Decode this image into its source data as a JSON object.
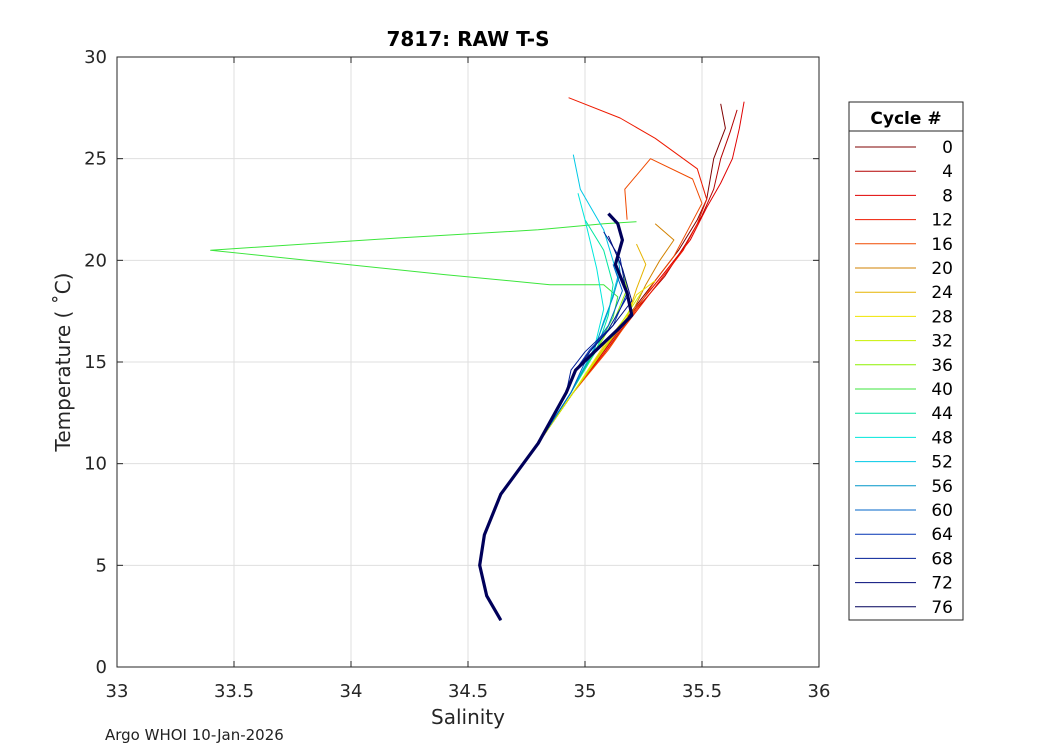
{
  "footer": "Argo WHOI 10-Jan-2026",
  "chart_data": {
    "type": "line",
    "title": "7817: RAW T-S",
    "xlabel": "Salinity",
    "ylabel": "Temperature ( ˚C)",
    "xlim": [
      33,
      36
    ],
    "ylim": [
      0,
      30
    ],
    "xticks": [
      "33",
      "33.5",
      "34",
      "34.5",
      "35",
      "35.5",
      "36"
    ],
    "yticks": [
      "0",
      "5",
      "10",
      "15",
      "20",
      "25",
      "30"
    ],
    "grid": true,
    "legend": {
      "title": "Cycle #",
      "placement": "right-outside",
      "entries": [
        {
          "label": "0",
          "color": "#7f0000"
        },
        {
          "label": "4",
          "color": "#b30000"
        },
        {
          "label": "8",
          "color": "#e00000"
        },
        {
          "label": "12",
          "color": "#ee1a00"
        },
        {
          "label": "16",
          "color": "#f04a00"
        },
        {
          "label": "20",
          "color": "#d28200"
        },
        {
          "label": "24",
          "color": "#e6b400"
        },
        {
          "label": "28",
          "color": "#f0e400"
        },
        {
          "label": "32",
          "color": "#c8f000"
        },
        {
          "label": "36",
          "color": "#8ef000"
        },
        {
          "label": "40",
          "color": "#3ce63c"
        },
        {
          "label": "44",
          "color": "#00e6a0"
        },
        {
          "label": "48",
          "color": "#00e6dc"
        },
        {
          "label": "52",
          "color": "#00c8e6"
        },
        {
          "label": "56",
          "color": "#0096c8"
        },
        {
          "label": "60",
          "color": "#0064c8"
        },
        {
          "label": "64",
          "color": "#0032b4"
        },
        {
          "label": "68",
          "color": "#001e96"
        },
        {
          "label": "72",
          "color": "#000a78"
        },
        {
          "label": "76",
          "color": "#00005a"
        }
      ]
    },
    "series": [
      {
        "legend_index": 0,
        "x": [
          34.64,
          34.58,
          34.55,
          34.57,
          34.64,
          34.8,
          34.95,
          35.06,
          35.2,
          35.3,
          35.4,
          35.48,
          35.52,
          35.55,
          35.6,
          35.58
        ],
        "y": [
          2.3,
          3.5,
          5,
          6.5,
          8.5,
          11,
          13.5,
          15.2,
          17.5,
          19,
          20.5,
          22,
          23,
          25,
          26.5,
          27.7
        ]
      },
      {
        "legend_index": 1,
        "x": [
          34.64,
          34.58,
          34.55,
          34.57,
          34.64,
          34.8,
          34.95,
          35.08,
          35.22,
          35.34,
          35.43,
          35.5,
          35.55,
          35.58,
          35.62,
          35.65
        ],
        "y": [
          2.3,
          3.5,
          5,
          6.5,
          8.5,
          11,
          13.5,
          15.4,
          17.6,
          19.2,
          20.8,
          22.2,
          23.5,
          25,
          26.3,
          27.4
        ]
      },
      {
        "legend_index": 2,
        "x": [
          34.64,
          34.58,
          34.55,
          34.57,
          34.64,
          34.8,
          34.95,
          35.08,
          35.22,
          35.34,
          35.45,
          35.52,
          35.58,
          35.63,
          35.66,
          35.68
        ],
        "y": [
          2.3,
          3.5,
          5,
          6.5,
          8.5,
          11,
          13.5,
          15.5,
          17.7,
          19.4,
          21,
          22.6,
          23.8,
          25,
          26.5,
          27.8
        ]
      },
      {
        "legend_index": 3,
        "x": [
          34.64,
          34.58,
          34.55,
          34.57,
          34.64,
          34.8,
          34.95,
          35.08,
          35.22,
          35.32,
          35.42,
          35.48,
          35.52,
          35.48,
          35.3,
          35.15,
          34.93
        ],
        "y": [
          2.3,
          3.5,
          5,
          6.5,
          8.5,
          11,
          13.5,
          15.4,
          17.5,
          19,
          20.5,
          21.8,
          23,
          24.5,
          26,
          27,
          28
        ]
      },
      {
        "legend_index": 4,
        "x": [
          34.64,
          34.58,
          34.55,
          34.57,
          34.64,
          34.8,
          34.95,
          35.1,
          35.22,
          35.3,
          35.38,
          35.44,
          35.5,
          35.46,
          35.28,
          35.17,
          35.18
        ],
        "y": [
          2.3,
          3.5,
          5,
          6.5,
          8.5,
          11,
          13.5,
          15.6,
          17.6,
          19,
          20.2,
          21.5,
          22.8,
          24,
          25,
          23.5,
          22
        ]
      },
      {
        "legend_index": 5,
        "x": [
          34.64,
          34.58,
          34.55,
          34.57,
          34.64,
          34.8,
          34.95,
          35.08,
          35.2,
          35.26,
          35.32,
          35.38,
          35.3
        ],
        "y": [
          2.3,
          3.5,
          5,
          6.5,
          8.5,
          11,
          13.5,
          15.6,
          17.4,
          18.8,
          20,
          21,
          21.8
        ]
      },
      {
        "legend_index": 6,
        "x": [
          34.64,
          34.58,
          34.55,
          34.57,
          34.64,
          34.8,
          34.95,
          35.08,
          35.18,
          35.22,
          35.26,
          35.22
        ],
        "y": [
          2.3,
          3.5,
          5,
          6.5,
          8.5,
          11,
          13.5,
          15.7,
          17.2,
          18.6,
          19.8,
          20.8
        ]
      },
      {
        "legend_index": 7,
        "x": [
          34.64,
          34.58,
          34.55,
          34.57,
          34.64,
          34.8,
          34.95,
          35.08,
          35.18,
          35.22,
          35.3
        ],
        "y": [
          2.3,
          3.5,
          5,
          6.5,
          8.5,
          11,
          13.5,
          15.8,
          17.3,
          18.3,
          19
        ]
      },
      {
        "legend_index": 8,
        "x": [
          34.64,
          34.58,
          34.55,
          34.57,
          34.64,
          34.8,
          34.95,
          35.08,
          35.16,
          35.24
        ],
        "y": [
          2.3,
          3.5,
          5,
          6.5,
          8.5,
          11,
          13.5,
          15.6,
          17,
          18.4
        ]
      },
      {
        "legend_index": 9,
        "x": [
          34.64,
          34.58,
          34.55,
          34.57,
          34.64,
          34.8,
          34.94,
          35.05,
          35.13,
          35.18,
          35.16
        ],
        "y": [
          2.3,
          3.5,
          5,
          6.5,
          8.5,
          11,
          13.5,
          15.6,
          17.2,
          18.6,
          19.6
        ]
      },
      {
        "legend_index": 10,
        "x": [
          34.64,
          34.58,
          34.55,
          34.57,
          34.64,
          34.8,
          34.94,
          35.05,
          35.12,
          35.14,
          35.08,
          34.85,
          34.4,
          33.4,
          34.2,
          34.8,
          35.08,
          35.22
        ],
        "y": [
          2.3,
          3.5,
          5,
          6.5,
          8.5,
          11,
          13.5,
          15.7,
          17.2,
          18.2,
          18.8,
          18.8,
          19.3,
          20.5,
          21.1,
          21.5,
          21.8,
          21.9
        ]
      },
      {
        "legend_index": 11,
        "x": [
          34.64,
          34.58,
          34.55,
          34.57,
          34.64,
          34.8,
          34.94,
          35.05,
          35.1,
          35.12,
          35.08,
          35.0
        ],
        "y": [
          2.3,
          3.5,
          5,
          6.5,
          8.5,
          11,
          13.5,
          15.6,
          17.3,
          18.8,
          20.5,
          22
        ]
      },
      {
        "legend_index": 12,
        "x": [
          34.64,
          34.58,
          34.55,
          34.57,
          34.64,
          34.8,
          34.94,
          35.04,
          35.08,
          35.05,
          35.0,
          34.97
        ],
        "y": [
          2.3,
          3.5,
          5,
          6.5,
          8.5,
          11,
          13.5,
          15.7,
          17.6,
          19.6,
          22,
          23.3
        ]
      },
      {
        "legend_index": 13,
        "x": [
          34.64,
          34.58,
          34.55,
          34.57,
          34.64,
          34.8,
          34.94,
          35.04,
          35.1,
          35.14,
          35.08,
          34.98,
          34.95
        ],
        "y": [
          2.3,
          3.5,
          5,
          6.5,
          8.5,
          11,
          13.5,
          15.7,
          17.5,
          19.2,
          21.5,
          23.5,
          25.2
        ]
      },
      {
        "legend_index": 14,
        "x": [
          34.64,
          34.58,
          34.55,
          34.57,
          34.64,
          34.8,
          34.94,
          35.04,
          35.08,
          35.12,
          35.15,
          35.14
        ],
        "y": [
          2.3,
          3.5,
          5,
          6.5,
          8.5,
          11,
          13.5,
          15.6,
          17,
          18.2,
          19.4,
          20.3
        ]
      },
      {
        "legend_index": 15,
        "x": [
          34.64,
          34.58,
          34.55,
          34.57,
          34.64,
          34.8,
          34.94,
          35.02,
          35.1,
          35.16,
          35.12
        ],
        "y": [
          2.3,
          3.5,
          5,
          6.5,
          8.5,
          11,
          13.5,
          15.5,
          16.8,
          18.5,
          19.8
        ]
      },
      {
        "legend_index": 16,
        "x": [
          34.64,
          34.58,
          34.55,
          34.57,
          34.64,
          34.8,
          34.92,
          34.96,
          35.02,
          35.12,
          35.18,
          35.14
        ],
        "y": [
          2.3,
          3.5,
          5,
          6.5,
          8.5,
          11,
          13.5,
          14.6,
          15.6,
          16.8,
          18.4,
          19.6
        ]
      },
      {
        "legend_index": 17,
        "x": [
          34.64,
          34.58,
          34.55,
          34.57,
          34.64,
          34.8,
          34.92,
          34.94,
          35.0,
          35.1,
          35.18,
          35.15,
          35.08
        ],
        "y": [
          2.3,
          3.5,
          5,
          6.5,
          8.5,
          11,
          13.5,
          14.6,
          15.5,
          16.6,
          18.2,
          20.1,
          21.4
        ]
      },
      {
        "legend_index": 18,
        "x": [
          34.64,
          34.58,
          34.55,
          34.57,
          34.64,
          34.8,
          34.92,
          34.95,
          35.02,
          35.12,
          35.2,
          35.16,
          35.1
        ],
        "y": [
          2.3,
          3.5,
          5,
          6.5,
          8.5,
          11,
          13.5,
          14.4,
          15.5,
          16.8,
          18,
          19.6,
          21.2
        ]
      },
      {
        "legend_index": 19,
        "x": [
          34.64,
          34.58,
          34.55,
          34.57,
          34.64,
          34.8,
          34.92,
          34.96,
          35.04,
          35.14,
          35.2,
          35.18,
          35.13,
          35.16,
          35.14,
          35.1
        ],
        "y": [
          2.3,
          3.5,
          5,
          6.5,
          8.5,
          11,
          13.5,
          14.6,
          15.5,
          16.6,
          17.3,
          18.4,
          19.8,
          21,
          21.8,
          22.3
        ]
      }
    ]
  }
}
